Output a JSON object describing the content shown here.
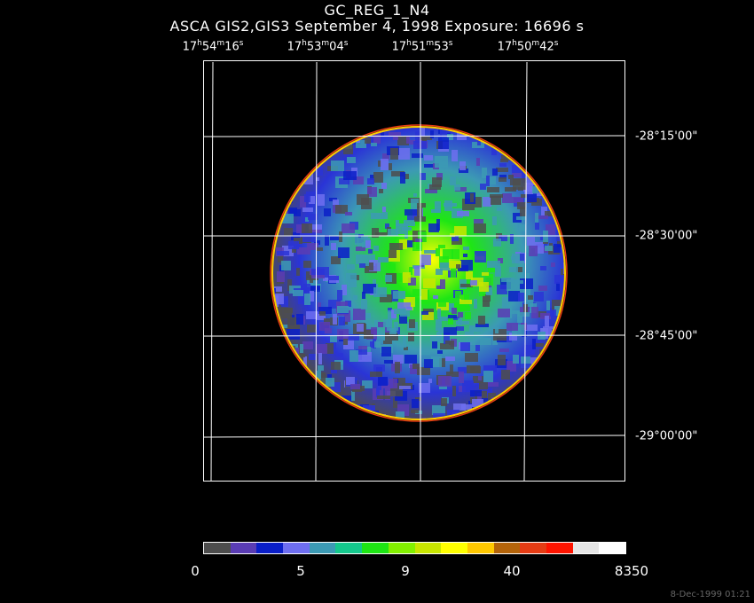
{
  "title": "GC_REG_1_N4",
  "subtitle": "ASCA GIS2,GIS3 September 4, 1998 Exposure: 16696 s",
  "ra_labels": [
    {
      "h": "17",
      "m": "54",
      "s": "16"
    },
    {
      "h": "17",
      "m": "53",
      "s": "04"
    },
    {
      "h": "17",
      "m": "51",
      "s": "53"
    },
    {
      "h": "17",
      "m": "50",
      "s": "42"
    }
  ],
  "dec_labels": [
    "-28°15'00\"",
    "-28°30'00\"",
    "-28°45'00\"",
    "-29°00'00\""
  ],
  "colorbar": {
    "colors": [
      "#4d4d4d",
      "#5a3cb4",
      "#0a1ec8",
      "#6e6ef0",
      "#3c9ab4",
      "#14c88c",
      "#1ee614",
      "#82f000",
      "#c8e600",
      "#ffff00",
      "#ffc800",
      "#b4640a",
      "#e63c14",
      "#ff1400",
      "#e6e6e6",
      "#ffffff"
    ],
    "labels": [
      "0",
      "5",
      "9",
      "40",
      "8350"
    ]
  },
  "timestamp": "8-Dec-1999 01:21"
}
